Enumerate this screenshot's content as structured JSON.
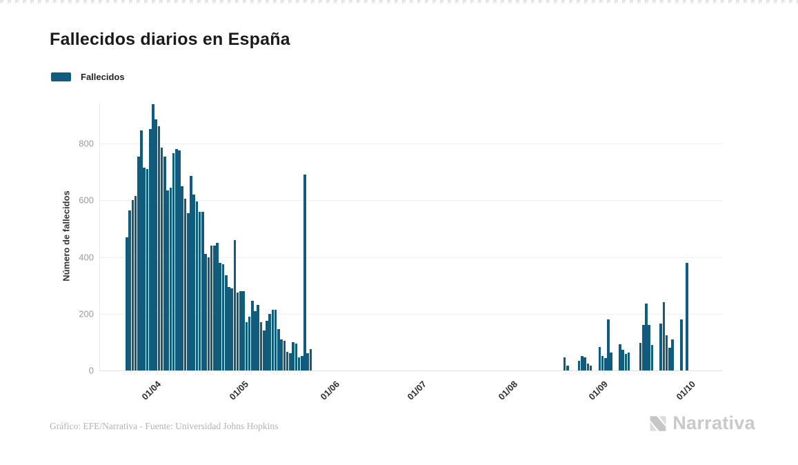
{
  "header": {
    "title": "Fallecidos diarios en España"
  },
  "legend": {
    "label": "Fallecidos",
    "color": "#115c7c"
  },
  "footer": {
    "credit": "Gráfico: EFE/Narrativa - Fuente: Universidad Johns Hopkins",
    "brand": "Narrativa"
  },
  "chart_data": {
    "type": "bar",
    "title": "Fallecidos diarios en España",
    "xlabel": "",
    "ylabel": "Número de fallecidos",
    "y_ticks": [
      0,
      200,
      400,
      600,
      800
    ],
    "ylim": [
      0,
      960
    ],
    "grid": "horizontal-only",
    "legend_position": "top-left",
    "x_axis": {
      "unit": "day",
      "tick_labels": [
        "01/04",
        "01/05",
        "01/06",
        "01/07",
        "01/08",
        "01/09",
        "01/10"
      ],
      "tick_day_indices": [
        9,
        39,
        70,
        100,
        131,
        162,
        192
      ],
      "note": "day index 0 = first bar, nine days before 01/04"
    },
    "series": [
      {
        "name": "Fallecidos",
        "color": "#115c7c",
        "values": [
          470,
          565,
          600,
          615,
          755,
          845,
          715,
          710,
          850,
          938,
          885,
          860,
          785,
          755,
          635,
          645,
          765,
          780,
          775,
          650,
          605,
          555,
          685,
          620,
          595,
          560,
          560,
          410,
          400,
          440,
          440,
          450,
          380,
          375,
          335,
          295,
          290,
          460,
          275,
          280,
          280,
          170,
          190,
          245,
          210,
          230,
          170,
          140,
          175,
          200,
          215,
          215,
          145,
          110,
          105,
          65,
          60,
          100,
          95,
          45,
          50,
          690,
          60,
          75,
          0,
          0,
          0,
          0,
          0,
          0,
          0,
          0,
          0,
          0,
          0,
          0,
          0,
          0,
          0,
          0,
          0,
          0,
          0,
          0,
          0,
          0,
          0,
          0,
          0,
          0,
          0,
          0,
          0,
          0,
          0,
          0,
          0,
          0,
          0,
          0,
          0,
          0,
          0,
          0,
          0,
          0,
          0,
          0,
          0,
          0,
          0,
          0,
          0,
          0,
          0,
          0,
          0,
          0,
          0,
          0,
          0,
          0,
          0,
          0,
          0,
          0,
          0,
          0,
          0,
          0,
          0,
          0,
          0,
          0,
          0,
          0,
          0,
          0,
          0,
          0,
          0,
          0,
          0,
          0,
          0,
          0,
          0,
          0,
          0,
          0,
          45,
          17,
          0,
          0,
          0,
          33,
          50,
          46,
          24,
          17,
          0,
          0,
          82,
          50,
          44,
          181,
          64,
          0,
          0,
          92,
          72,
          58,
          64,
          0,
          0,
          0,
          97,
          160,
          235,
          160,
          90,
          0,
          0,
          165,
          240,
          125,
          80,
          110,
          0,
          0,
          180,
          0,
          380
        ]
      }
    ]
  }
}
